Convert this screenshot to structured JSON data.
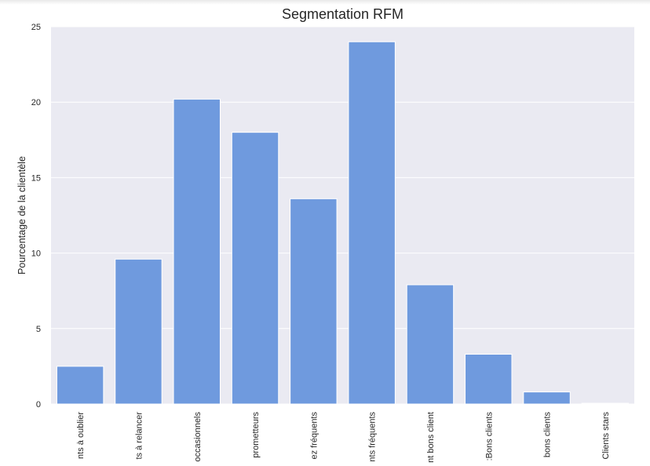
{
  "chart_data": {
    "type": "bar",
    "title": "Segmentation RFM",
    "xlabel": "",
    "ylabel": "Pourcentage de la clientèle",
    "categories": [
      "nts à oublier",
      "ts à relancer",
      "occasionnels",
      "prometteurs",
      "ez fréquents",
      "nts fréquents",
      "nt bons client",
      ":Bons clients",
      "bons clients",
      "Clients stars"
    ],
    "values": [
      2.5,
      9.6,
      20.2,
      18.0,
      13.6,
      24.0,
      7.9,
      3.3,
      0.8,
      0.05
    ],
    "ylim": [
      0,
      25
    ],
    "yticks": [
      0,
      5,
      10,
      15,
      20,
      25
    ],
    "ytick_labels": [
      "0",
      "5",
      "10",
      "15",
      "20",
      "25"
    ],
    "grid": true,
    "colors": {
      "bar": "#6f9ade",
      "background": "#eaeaf2",
      "grid": "#ffffff",
      "text": "#262626"
    }
  }
}
